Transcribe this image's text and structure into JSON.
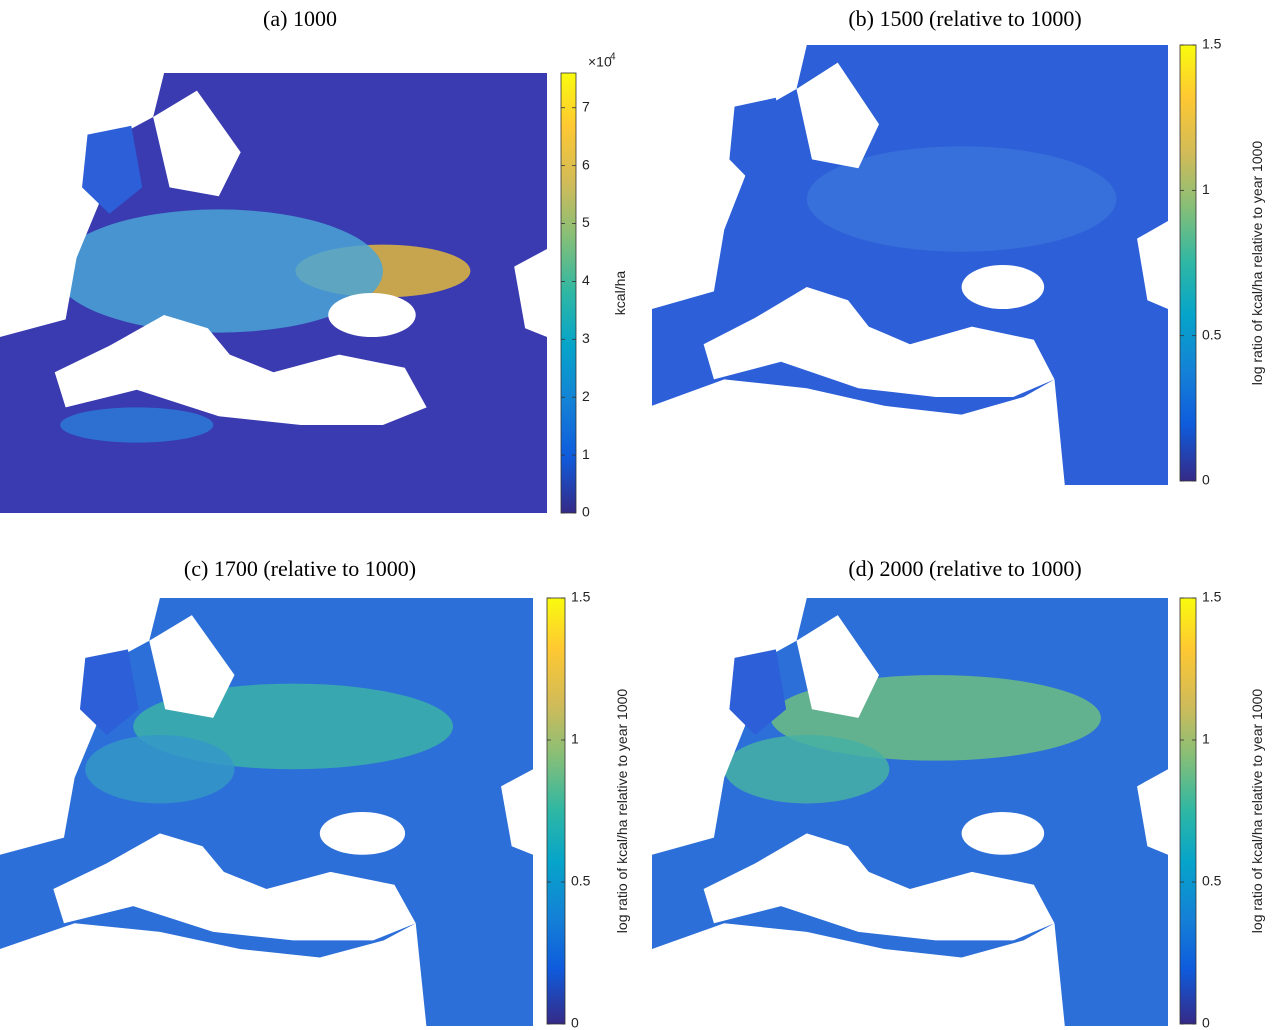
{
  "panels": [
    {
      "title": "(a) 1000",
      "colorbar": {
        "lim": [
          0,
          7.6
        ],
        "ticks": [
          0,
          1,
          2,
          3,
          4,
          5,
          6,
          7
        ],
        "label": "kcal/ha",
        "multiplier_base": "×10",
        "multiplier_exponent": 4
      }
    },
    {
      "title": "(b) 1500 (relative to 1000)",
      "colorbar": {
        "lim": [
          0,
          1.5
        ],
        "ticks": [
          0,
          0.5,
          1,
          1.5
        ],
        "label": "log ratio of kcal/ha relative to year 1000"
      }
    },
    {
      "title": "(c) 1700 (relative to 1000)",
      "colorbar": {
        "lim": [
          0,
          1.5
        ],
        "ticks": [
          0,
          0.5,
          1,
          1.5
        ],
        "label": "log ratio of kcal/ha relative to year 1000"
      }
    },
    {
      "title": "(d) 2000 (relative to 1000)",
      "colorbar": {
        "lim": [
          0,
          1.5
        ],
        "ticks": [
          0,
          0.5,
          1,
          1.5
        ],
        "label": "log ratio of kcal/ha relative to year 1000"
      }
    }
  ]
}
